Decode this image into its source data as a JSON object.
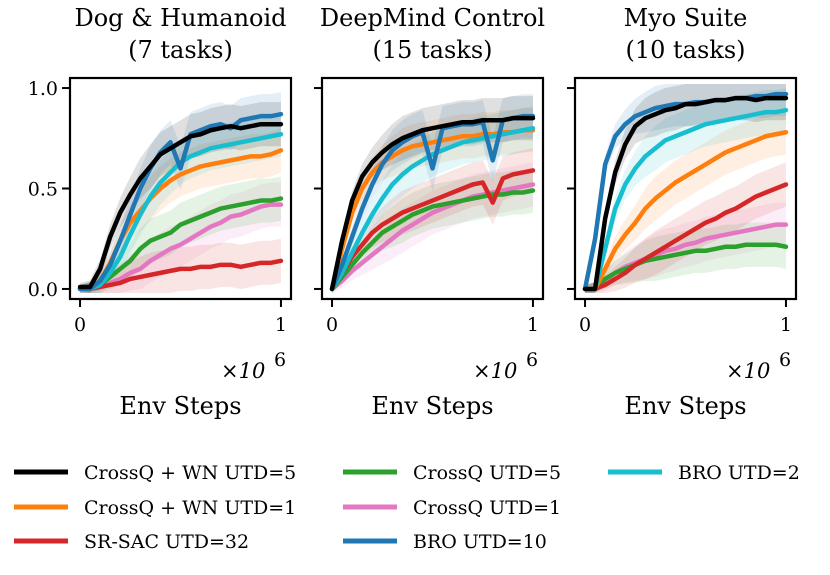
{
  "chart_data": {
    "type": "line",
    "legend_position": "bottom",
    "legend": [
      {
        "name": "CrossQ + WN UTD=5",
        "color": "#000000"
      },
      {
        "name": "CrossQ + WN UTD=1",
        "color": "#ff7f0e"
      },
      {
        "name": "SR-SAC UTD=32",
        "color": "#d62728"
      },
      {
        "name": "CrossQ UTD=5",
        "color": "#2ca02c"
      },
      {
        "name": "CrossQ UTD=1",
        "color": "#e377c2"
      },
      {
        "name": "BRO UTD=10",
        "color": "#1f77b4"
      },
      {
        "name": "BRO UTD=2",
        "color": "#17becf"
      }
    ],
    "x": [
      0,
      0.05,
      0.1,
      0.15,
      0.2,
      0.25,
      0.3,
      0.35,
      0.4,
      0.45,
      0.5,
      0.55,
      0.6,
      0.65,
      0.7,
      0.75,
      0.8,
      0.85,
      0.9,
      0.95,
      1.0
    ],
    "xlim": [
      -0.05,
      1.05
    ],
    "ylim": [
      -0.05,
      1.05
    ],
    "xticks": [
      0,
      1
    ],
    "xtick_labels": [
      "0",
      "1"
    ],
    "yticks": [
      0,
      0.5,
      1.0
    ],
    "ytick_labels": [
      "0.0",
      "0.5",
      "1.0"
    ],
    "x_scale_label": "×10",
    "x_scale_exponent": "6",
    "panels": [
      {
        "title_line1": "Dog & Humanoid",
        "title_line2": "(7 tasks)",
        "xlabel": "Env Steps",
        "series": [
          {
            "name": "CrossQ + WN UTD=5",
            "values": [
              0.01,
              0.01,
              0.1,
              0.26,
              0.38,
              0.47,
              0.55,
              0.61,
              0.67,
              0.7,
              0.73,
              0.76,
              0.77,
              0.79,
              0.8,
              0.81,
              0.8,
              0.81,
              0.82,
              0.82,
              0.82
            ]
          },
          {
            "name": "CrossQ + WN UTD=1",
            "values": [
              0.0,
              0.0,
              0.04,
              0.13,
              0.24,
              0.33,
              0.39,
              0.45,
              0.5,
              0.54,
              0.57,
              0.59,
              0.61,
              0.62,
              0.63,
              0.64,
              0.65,
              0.66,
              0.66,
              0.67,
              0.69
            ]
          },
          {
            "name": "SR-SAC UTD=32",
            "values": [
              0.0,
              0.0,
              0.01,
              0.02,
              0.03,
              0.05,
              0.06,
              0.07,
              0.08,
              0.09,
              0.1,
              0.1,
              0.11,
              0.11,
              0.12,
              0.12,
              0.11,
              0.12,
              0.13,
              0.13,
              0.14
            ]
          },
          {
            "name": "CrossQ UTD=5",
            "values": [
              0.0,
              0.0,
              0.02,
              0.06,
              0.1,
              0.14,
              0.2,
              0.24,
              0.26,
              0.28,
              0.32,
              0.34,
              0.36,
              0.38,
              0.4,
              0.41,
              0.42,
              0.43,
              0.44,
              0.44,
              0.45
            ]
          },
          {
            "name": "CrossQ UTD=1",
            "values": [
              0.0,
              0.0,
              0.01,
              0.03,
              0.05,
              0.08,
              0.1,
              0.14,
              0.17,
              0.2,
              0.22,
              0.25,
              0.28,
              0.31,
              0.33,
              0.36,
              0.37,
              0.39,
              0.41,
              0.42,
              0.42
            ]
          },
          {
            "name": "BRO UTD=10",
            "values": [
              0.0,
              0.0,
              0.04,
              0.12,
              0.24,
              0.37,
              0.5,
              0.6,
              0.68,
              0.73,
              0.6,
              0.77,
              0.79,
              0.81,
              0.82,
              0.8,
              0.84,
              0.85,
              0.86,
              0.86,
              0.87
            ]
          },
          {
            "name": "BRO UTD=2",
            "values": [
              0.0,
              0.0,
              0.02,
              0.08,
              0.16,
              0.27,
              0.37,
              0.46,
              0.53,
              0.58,
              0.63,
              0.66,
              0.68,
              0.7,
              0.71,
              0.72,
              0.73,
              0.74,
              0.75,
              0.76,
              0.77
            ]
          }
        ]
      },
      {
        "title_line1": "DeepMind Control",
        "title_line2": "(15 tasks)",
        "xlabel": "Env Steps",
        "series": [
          {
            "name": "CrossQ + WN UTD=5",
            "values": [
              0.0,
              0.24,
              0.44,
              0.56,
              0.63,
              0.68,
              0.72,
              0.75,
              0.77,
              0.79,
              0.8,
              0.81,
              0.82,
              0.83,
              0.83,
              0.84,
              0.84,
              0.84,
              0.85,
              0.85,
              0.85
            ]
          },
          {
            "name": "CrossQ + WN UTD=1",
            "values": [
              0.0,
              0.2,
              0.38,
              0.5,
              0.58,
              0.63,
              0.66,
              0.69,
              0.71,
              0.72,
              0.73,
              0.74,
              0.75,
              0.76,
              0.76,
              0.77,
              0.77,
              0.78,
              0.78,
              0.79,
              0.79
            ]
          },
          {
            "name": "SR-SAC UTD=32",
            "values": [
              0.0,
              0.08,
              0.16,
              0.22,
              0.28,
              0.32,
              0.35,
              0.38,
              0.4,
              0.42,
              0.44,
              0.46,
              0.48,
              0.5,
              0.52,
              0.53,
              0.43,
              0.55,
              0.57,
              0.58,
              0.59
            ]
          },
          {
            "name": "CrossQ UTD=5",
            "values": [
              0.0,
              0.06,
              0.12,
              0.18,
              0.23,
              0.28,
              0.31,
              0.34,
              0.37,
              0.39,
              0.41,
              0.42,
              0.43,
              0.44,
              0.45,
              0.46,
              0.47,
              0.47,
              0.48,
              0.48,
              0.49
            ]
          },
          {
            "name": "CrossQ UTD=1",
            "values": [
              0.0,
              0.04,
              0.09,
              0.13,
              0.17,
              0.21,
              0.25,
              0.29,
              0.32,
              0.35,
              0.38,
              0.4,
              0.42,
              0.44,
              0.46,
              0.47,
              0.48,
              0.49,
              0.5,
              0.51,
              0.52
            ]
          },
          {
            "name": "BRO UTD=10",
            "values": [
              0.0,
              0.12,
              0.26,
              0.4,
              0.52,
              0.62,
              0.69,
              0.73,
              0.76,
              0.78,
              0.6,
              0.8,
              0.81,
              0.82,
              0.82,
              0.83,
              0.64,
              0.84,
              0.85,
              0.86,
              0.86
            ]
          },
          {
            "name": "BRO UTD=2",
            "values": [
              0.0,
              0.08,
              0.18,
              0.28,
              0.37,
              0.45,
              0.52,
              0.57,
              0.61,
              0.64,
              0.67,
              0.69,
              0.71,
              0.73,
              0.74,
              0.75,
              0.76,
              0.77,
              0.78,
              0.79,
              0.8
            ]
          }
        ]
      },
      {
        "title_line1": "Myo Suite",
        "title_line2": "(10 tasks)",
        "xlabel": "Env Steps",
        "series": [
          {
            "name": "CrossQ + WN UTD=5",
            "values": [
              0.0,
              0.0,
              0.35,
              0.58,
              0.72,
              0.81,
              0.85,
              0.87,
              0.89,
              0.9,
              0.92,
              0.92,
              0.93,
              0.94,
              0.94,
              0.95,
              0.95,
              0.94,
              0.95,
              0.95,
              0.95
            ]
          },
          {
            "name": "CrossQ + WN UTD=1",
            "values": [
              0.0,
              0.0,
              0.1,
              0.2,
              0.27,
              0.33,
              0.4,
              0.45,
              0.49,
              0.53,
              0.56,
              0.59,
              0.62,
              0.65,
              0.68,
              0.7,
              0.72,
              0.74,
              0.76,
              0.77,
              0.78
            ]
          },
          {
            "name": "SR-SAC UTD=32",
            "values": [
              0.0,
              0.0,
              0.02,
              0.05,
              0.08,
              0.12,
              0.15,
              0.18,
              0.21,
              0.24,
              0.27,
              0.3,
              0.33,
              0.35,
              0.38,
              0.4,
              0.43,
              0.46,
              0.48,
              0.5,
              0.52
            ]
          },
          {
            "name": "CrossQ UTD=5",
            "values": [
              0.0,
              0.0,
              0.05,
              0.08,
              0.1,
              0.12,
              0.14,
              0.15,
              0.16,
              0.17,
              0.18,
              0.19,
              0.19,
              0.2,
              0.21,
              0.21,
              0.22,
              0.22,
              0.22,
              0.22,
              0.21
            ]
          },
          {
            "name": "CrossQ UTD=1",
            "values": [
              0.0,
              0.0,
              0.04,
              0.08,
              0.11,
              0.13,
              0.15,
              0.17,
              0.19,
              0.2,
              0.22,
              0.23,
              0.25,
              0.26,
              0.27,
              0.28,
              0.29,
              0.3,
              0.31,
              0.32,
              0.32
            ]
          },
          {
            "name": "BRO UTD=10",
            "values": [
              0.0,
              0.25,
              0.62,
              0.76,
              0.82,
              0.86,
              0.88,
              0.9,
              0.91,
              0.92,
              0.92,
              0.93,
              0.93,
              0.94,
              0.94,
              0.95,
              0.95,
              0.96,
              0.96,
              0.97,
              0.97
            ]
          },
          {
            "name": "BRO UTD=2",
            "values": [
              0.0,
              0.0,
              0.2,
              0.4,
              0.52,
              0.6,
              0.66,
              0.7,
              0.74,
              0.76,
              0.78,
              0.8,
              0.82,
              0.83,
              0.84,
              0.85,
              0.86,
              0.87,
              0.88,
              0.88,
              0.89
            ]
          }
        ]
      }
    ]
  }
}
